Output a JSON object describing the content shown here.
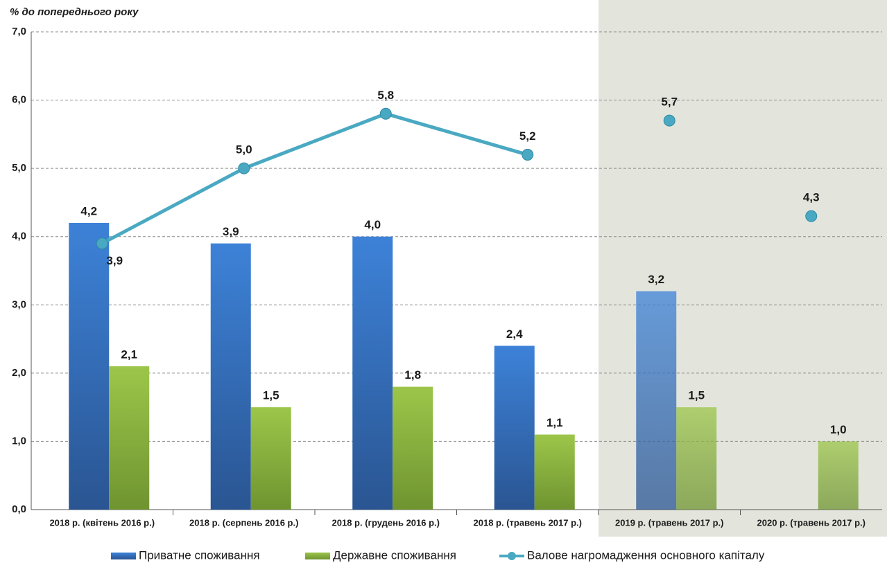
{
  "chart_data": {
    "type": "bar",
    "y_axis_label": "% до попереднього року",
    "categories": [
      "2018 р. (квітень 2016 р.)",
      "2018 р. (серпень 2016 р.)",
      "2018 р. (грудень 2016 р.)",
      "2018 р. (травень 2017 р.)",
      "2019 р. (травень 2017 р.)",
      "2020 р. (травень 2017 р.)"
    ],
    "series": [
      {
        "name": "Приватне споживання",
        "type": "bar",
        "color": "#3a7bd0",
        "values": [
          4.2,
          3.9,
          4.0,
          2.4,
          3.2,
          null
        ],
        "value_labels": [
          "4,2",
          "3,9",
          "4,0",
          "2,4",
          "3,2",
          null
        ]
      },
      {
        "name": "Державне споживання",
        "type": "bar",
        "color": "#94bd45",
        "values": [
          2.1,
          1.5,
          1.8,
          1.1,
          1.5,
          1.0
        ],
        "value_labels": [
          "2,1",
          "1,5",
          "1,8",
          "1,1",
          "1,5",
          "1,0"
        ]
      },
      {
        "name": "Валове нагромадження основного капіталу",
        "type": "line",
        "color": "#4aa9c2",
        "values": [
          3.9,
          5.0,
          5.8,
          5.2,
          5.7,
          4.3
        ],
        "value_labels": [
          "3,9",
          "5,0",
          "5,8",
          "5,2",
          "5,7",
          "4,3"
        ]
      }
    ],
    "shaded_from": "2019 р. (травень 2017 р.)",
    "ylim": [
      0,
      7
    ],
    "yticks": [
      {
        "value": 0,
        "label": "0,0"
      },
      {
        "value": 1,
        "label": "1,0"
      },
      {
        "value": 2,
        "label": "2,0"
      },
      {
        "value": 3,
        "label": "3,0"
      },
      {
        "value": 4,
        "label": "4,0"
      },
      {
        "value": 5,
        "label": "5,0"
      },
      {
        "value": 6,
        "label": "6,0"
      },
      {
        "value": 7,
        "label": "7,0"
      }
    ],
    "grid": true,
    "legend": "bottom"
  }
}
